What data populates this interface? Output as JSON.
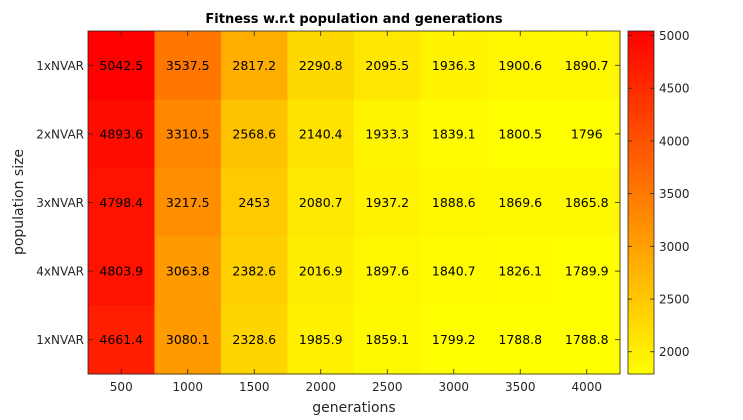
{
  "chart_data": {
    "type": "heatmap",
    "title": "Fitness w.r.t population and generations",
    "xlabel": "generations",
    "ylabel": "population size",
    "x_categories": [
      "500",
      "1000",
      "1500",
      "2000",
      "2500",
      "3000",
      "3500",
      "4000"
    ],
    "y_categories": [
      "1xNVAR",
      "2xNVAR",
      "3xNVAR",
      "4xNVAR",
      "1xNVAR"
    ],
    "values": [
      [
        5042.5,
        3537.5,
        2817.2,
        2290.8,
        2095.5,
        1936.3,
        1900.6,
        1890.7
      ],
      [
        4893.6,
        3310.5,
        2568.6,
        2140.4,
        1933.3,
        1839.1,
        1800.5,
        1796
      ],
      [
        4798.4,
        3217.5,
        2453,
        2080.7,
        1937.2,
        1888.6,
        1869.6,
        1865.8
      ],
      [
        4803.9,
        3063.8,
        2382.6,
        2016.9,
        1897.6,
        1840.7,
        1826.1,
        1789.9
      ],
      [
        4661.4,
        3080.1,
        2328.6,
        1985.9,
        1859.1,
        1799.2,
        1788.8,
        1788.8
      ]
    ],
    "value_labels": [
      [
        "5042.5",
        "3537.5",
        "2817.2",
        "2290.8",
        "2095.5",
        "1936.3",
        "1900.6",
        "1890.7"
      ],
      [
        "4893.6",
        "3310.5",
        "2568.6",
        "2140.4",
        "1933.3",
        "1839.1",
        "1800.5",
        "1796"
      ],
      [
        "4798.4",
        "3217.5",
        "2453",
        "2080.7",
        "1937.2",
        "1888.6",
        "1869.6",
        "1865.8"
      ],
      [
        "4803.9",
        "3063.8",
        "2382.6",
        "2016.9",
        "1897.6",
        "1840.7",
        "1826.1",
        "1789.9"
      ],
      [
        "4661.4",
        "3080.1",
        "2328.6",
        "1985.9",
        "1859.1",
        "1799.2",
        "1788.8",
        "1788.8"
      ]
    ],
    "colormap": "autumn",
    "colormap_low": "#ffff00",
    "colormap_high": "#ff0000",
    "colorbar": {
      "range": [
        1788.8,
        5042.5
      ],
      "ticks": [
        2000,
        2500,
        3000,
        3500,
        4000,
        4500,
        5000
      ],
      "tick_labels": [
        "2000",
        "2500",
        "3000",
        "3500",
        "4000",
        "4500",
        "5000"
      ]
    }
  }
}
